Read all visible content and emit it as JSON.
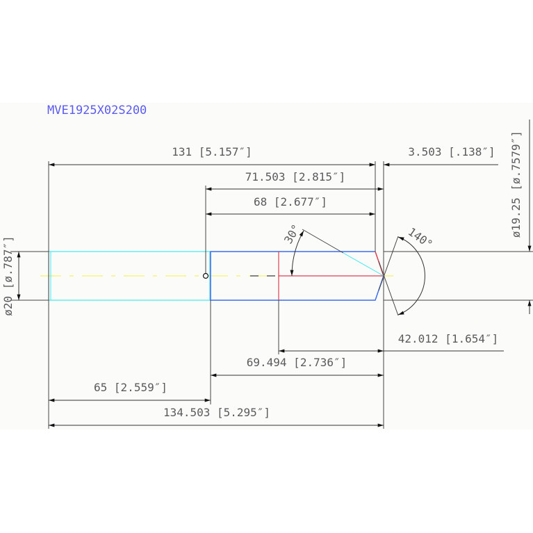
{
  "title": "MVE1925X02S200",
  "colors": {
    "title": "#5b5bf0",
    "shank": "#40e8f0",
    "body": "#3c6cf0",
    "red": "#e03c50",
    "centerline": "#f0f040",
    "dimension": "#333333"
  },
  "dimensions": {
    "overall_to_chamfer": "131 [5.157″]",
    "chamfer_length": "3.503 [.138″]",
    "step_to_tip": "71.503 [2.815″]",
    "step_to_chamfer": "68 [2.677″]",
    "tip_angle_half": "30°",
    "point_angle": "140°",
    "shank_diameter": "ø20 [ø.787″]",
    "body_diameter": "ø19.25 [ø.7579″]",
    "flute_length": "42.012 [1.654″]",
    "body_length": "69.494 [2.736″]",
    "shank_length": "65 [2.559″]",
    "overall_length": "134.503 [5.295″]"
  }
}
